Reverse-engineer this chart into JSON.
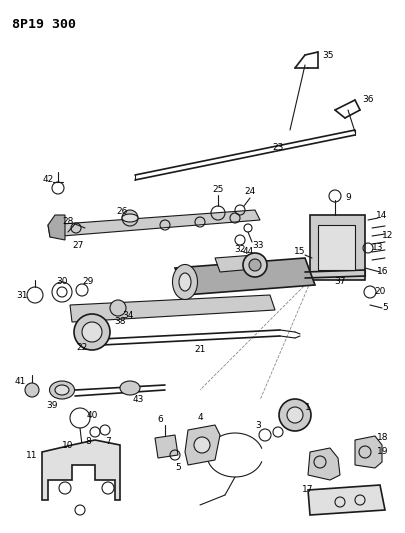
{
  "title": "8P19 300",
  "bg_color": "#f5f5f0",
  "fig_width": 4.05,
  "fig_height": 5.33,
  "dpi": 100,
  "line_color": "#1a1a1a",
  "label_fontsize": 6.5,
  "title_fontsize": 9.5,
  "title_color": "#000000"
}
